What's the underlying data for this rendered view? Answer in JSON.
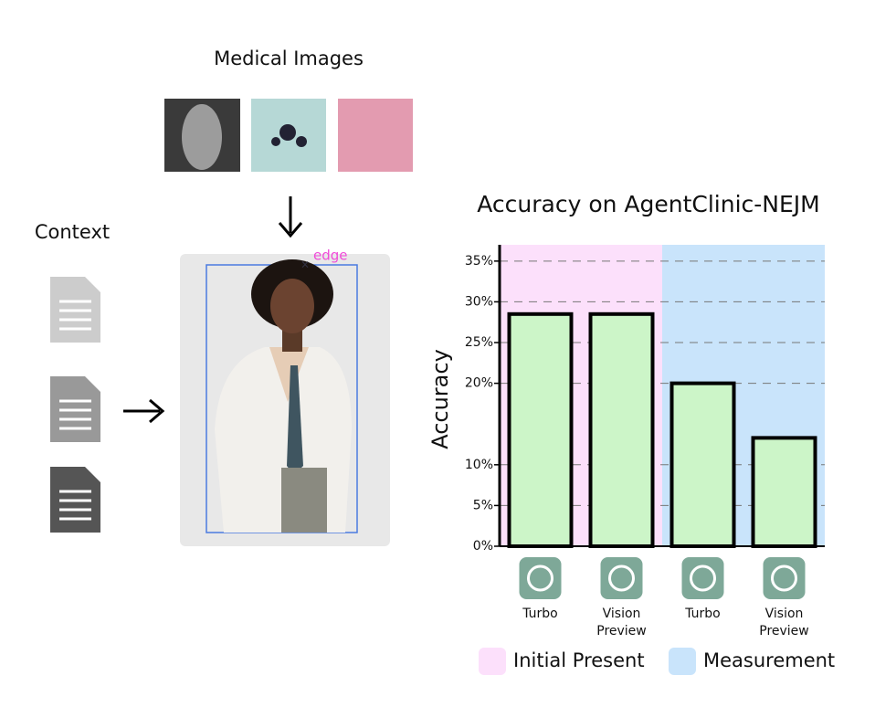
{
  "diagram": {
    "images_label": "Medical Images",
    "context_label": "Context",
    "edge_label": "edge"
  },
  "chart_data": {
    "type": "bar",
    "title": "Accuracy on AgentClinic-NEJM",
    "y_label": "Accuracy",
    "categories": [
      "Turbo",
      "Vision Preview",
      "Turbo",
      "Vision Preview"
    ],
    "values": [
      28.5,
      28.5,
      20,
      13.3
    ],
    "color": "#ccf5c8",
    "ylim": [
      0,
      37
    ],
    "yticks": [
      {
        "value": 0,
        "label": "0%"
      },
      {
        "value": 5,
        "label": "5%"
      },
      {
        "value": 10,
        "label": "10%"
      },
      {
        "value": 20,
        "label": "20%"
      },
      {
        "value": 25,
        "label": "25%"
      },
      {
        "value": 30,
        "label": "30%"
      },
      {
        "value": 35,
        "label": "35%"
      }
    ],
    "grid": true,
    "regions": [
      {
        "name": "Initial Present",
        "color": "#fce0fb"
      },
      {
        "name": "Measurement",
        "color": "#c9e4fb"
      }
    ]
  }
}
